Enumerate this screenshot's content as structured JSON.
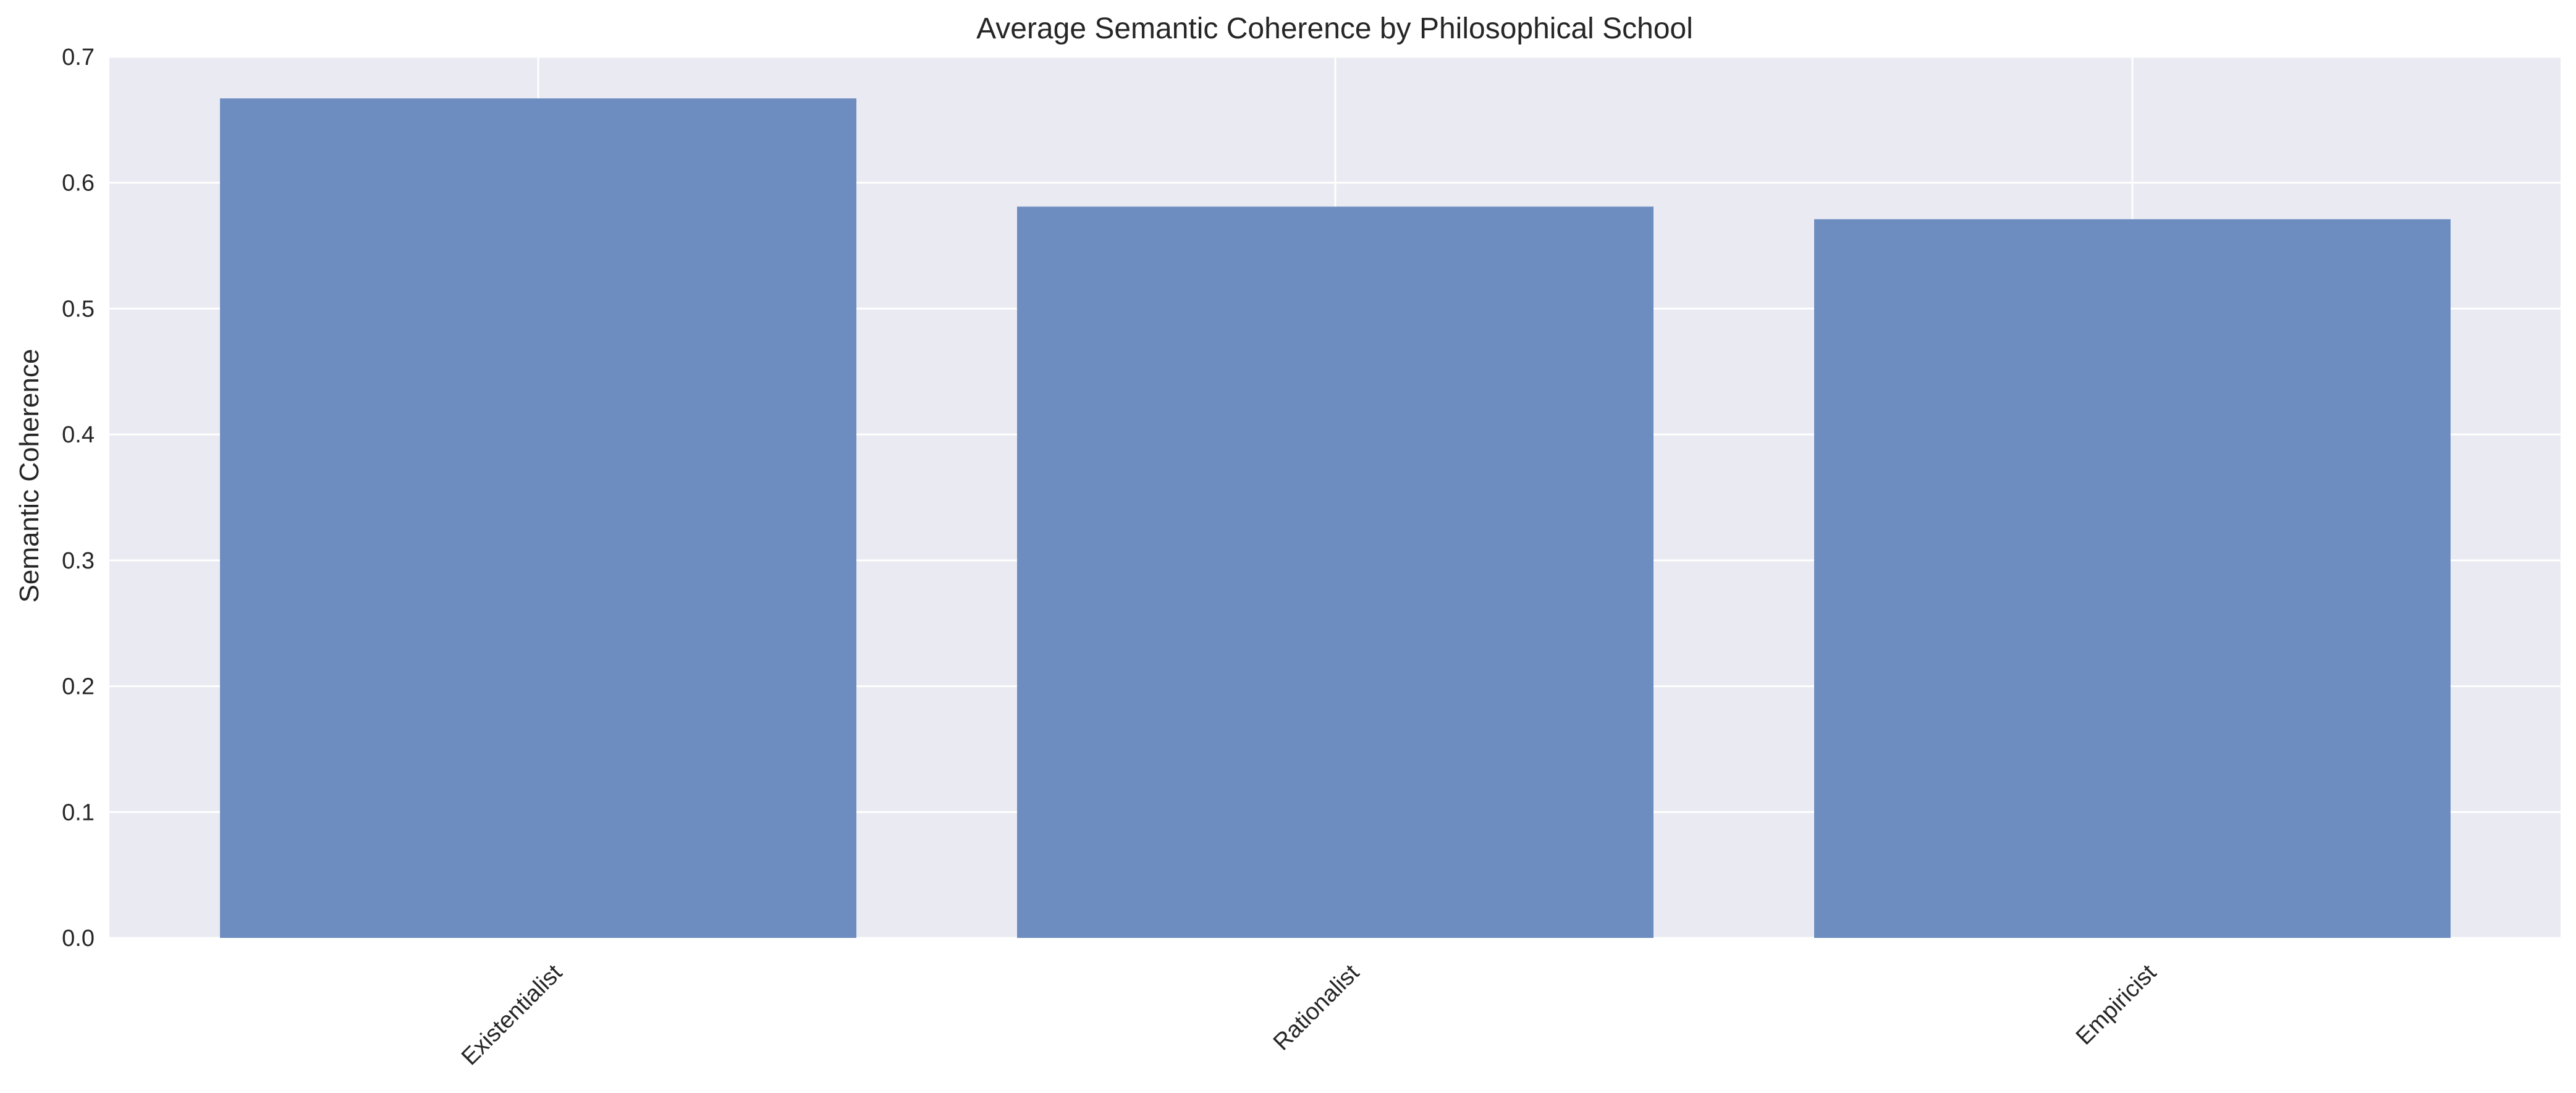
{
  "chart_data": {
    "type": "bar",
    "title": "Average Semantic Coherence by Philosophical School",
    "xlabel": "",
    "ylabel": "Semantic Coherence",
    "categories": [
      "Existentialist",
      "Rationalist",
      "Empiricist"
    ],
    "values": [
      0.667,
      0.581,
      0.571
    ],
    "ylim": [
      0,
      0.7
    ],
    "yticks": [
      0.0,
      0.1,
      0.2,
      0.3,
      0.4,
      0.5,
      0.6,
      0.7
    ],
    "ytick_labels": [
      "0.0",
      "0.1",
      "0.2",
      "0.3",
      "0.4",
      "0.5",
      "0.6",
      "0.7"
    ],
    "grid": true,
    "colors": {
      "bar": "#6a8bc0",
      "plot_background": "#eaeaf2",
      "grid": "#ffffff"
    }
  }
}
